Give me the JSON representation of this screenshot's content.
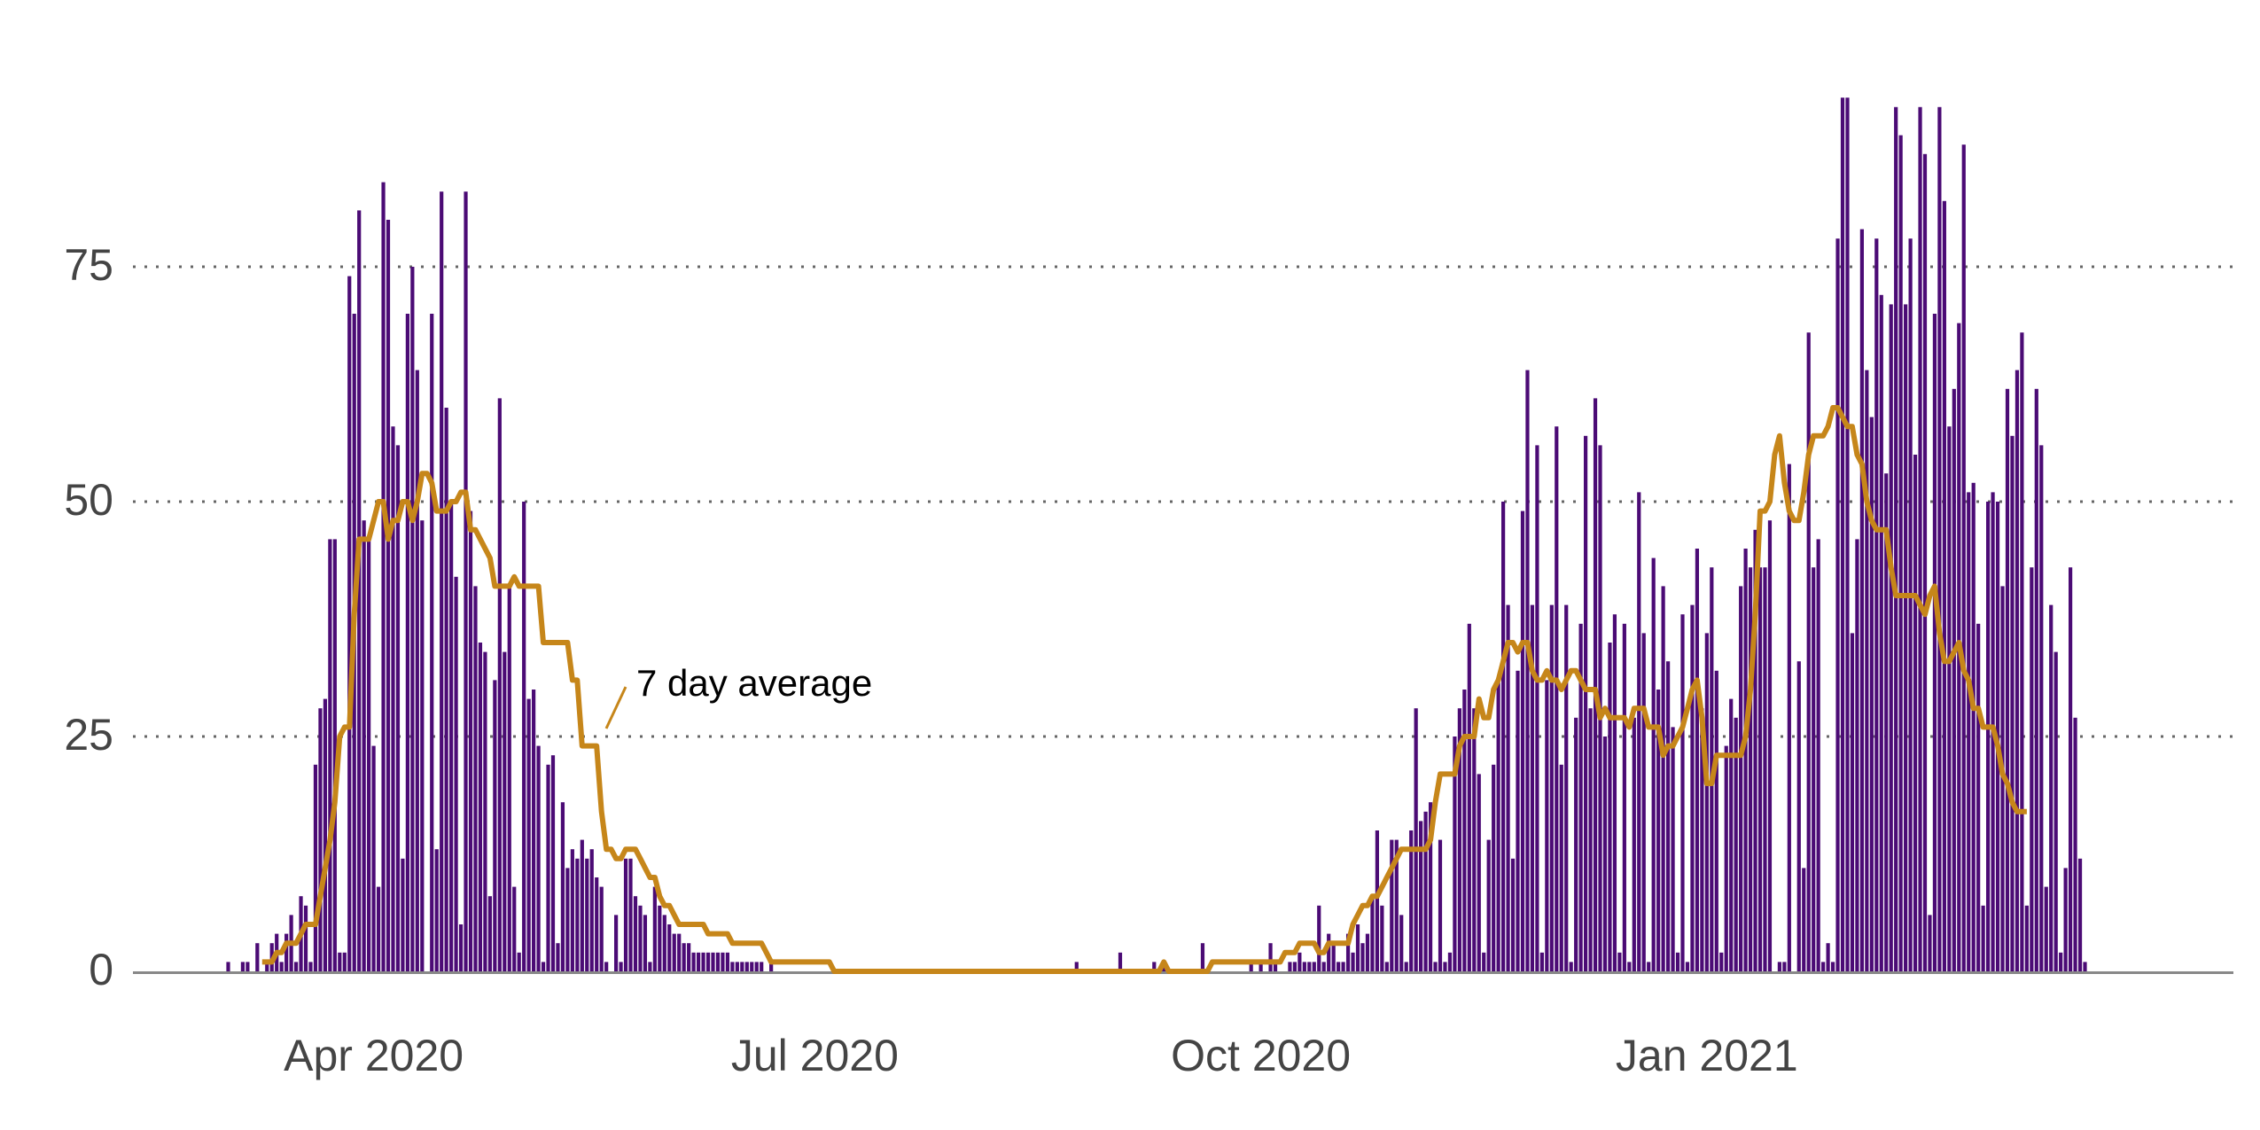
{
  "chart_data": {
    "type": "bar",
    "x_start": "2020-03-02",
    "x_tick_labels": [
      "Apr 2020",
      "Jul 2020",
      "Oct 2020",
      "Jan 2021"
    ],
    "x_tick_dates": [
      "2020-04-01",
      "2020-07-01",
      "2020-10-01",
      "2021-01-01"
    ],
    "y_tick_labels": [
      "0",
      "25",
      "50",
      "75"
    ],
    "y_ticks": [
      0,
      25,
      50,
      75
    ],
    "ylim": [
      0,
      93
    ],
    "grid": "horizontal dotted",
    "annotation": "7 day average",
    "colors": {
      "bars": "#4b0b75",
      "average": "#c6861a",
      "grid": "#666666",
      "axis": "#888888"
    },
    "series": [
      {
        "type": "bar",
        "values": [
          1,
          0,
          0,
          1,
          1,
          0,
          3,
          0,
          1,
          3,
          4,
          1,
          4,
          6,
          1,
          8,
          7,
          1,
          22,
          28,
          29,
          46,
          46,
          2,
          2,
          74,
          70,
          81,
          48,
          46,
          24,
          9,
          84,
          80,
          58,
          56,
          12,
          70,
          75,
          64,
          48,
          0,
          70,
          13,
          83,
          60,
          50,
          42,
          5,
          83,
          49,
          41,
          35,
          34,
          8,
          31,
          61,
          34,
          41,
          9,
          2,
          50,
          29,
          30,
          24,
          1,
          22,
          23,
          3,
          18,
          11,
          13,
          12,
          14,
          12,
          13,
          10,
          9,
          1,
          0,
          6,
          1,
          12,
          12,
          8,
          7,
          6,
          1,
          9,
          7,
          6,
          5,
          4,
          4,
          3,
          3,
          2,
          2,
          2,
          2,
          2,
          2,
          2,
          2,
          1,
          1,
          1,
          1,
          1,
          1,
          1,
          0,
          1,
          0,
          0,
          0,
          0,
          0,
          0,
          0,
          0,
          0,
          0,
          0,
          0,
          0,
          0,
          0,
          0,
          0,
          0,
          0,
          0,
          0,
          0,
          0,
          0,
          0,
          0,
          0,
          0,
          0,
          0,
          0,
          0,
          0,
          0,
          0,
          0,
          0,
          0,
          0,
          0,
          0,
          0,
          0,
          0,
          0,
          0,
          0,
          0,
          0,
          0,
          0,
          0,
          0,
          0,
          0,
          0,
          0,
          0,
          0,
          0,
          0,
          0,
          1,
          0,
          0,
          0,
          0,
          0,
          0,
          0,
          0,
          2,
          0,
          0,
          0,
          0,
          0,
          0,
          1,
          0,
          1,
          0,
          0,
          0,
          0,
          0,
          0,
          0,
          3,
          0,
          0,
          0,
          0,
          0,
          0,
          0,
          0,
          0,
          1,
          0,
          1,
          0,
          3,
          1,
          0,
          0,
          1,
          1,
          2,
          1,
          1,
          1,
          7,
          1,
          4,
          3,
          1,
          1,
          4,
          2,
          5,
          3,
          4,
          8,
          15,
          7,
          1,
          14,
          14,
          6,
          1,
          15,
          28,
          16,
          17,
          18,
          1,
          14,
          1,
          2,
          25,
          28,
          30,
          37,
          28,
          21,
          2,
          14,
          22,
          31,
          50,
          39,
          12,
          32,
          49,
          64,
          39,
          56,
          2,
          31,
          39,
          58,
          22,
          39,
          1,
          27,
          37,
          57,
          28,
          61,
          56,
          25,
          35,
          38,
          2,
          37,
          1,
          27,
          51,
          36,
          1,
          44,
          30,
          41,
          33,
          26,
          2,
          38,
          1,
          39,
          45,
          28,
          36,
          43,
          32,
          2,
          24,
          29,
          27,
          41,
          45,
          43,
          47,
          43,
          43,
          48,
          0,
          1,
          1,
          54,
          0,
          33,
          11,
          68,
          43,
          46,
          1,
          3,
          1,
          78,
          93,
          93,
          36,
          46,
          79,
          64,
          59,
          78,
          72,
          53,
          71,
          92,
          89,
          71,
          78,
          55,
          92,
          87,
          6,
          70,
          92,
          82,
          58,
          62,
          69,
          88,
          51,
          52,
          37,
          7,
          50,
          51,
          50,
          41,
          62,
          57,
          64,
          68,
          7,
          43,
          62,
          56,
          9,
          39,
          34,
          2,
          11,
          43,
          27,
          12,
          1
        ]
      },
      {
        "type": "line",
        "name": "7 day average",
        "values": [
          null,
          null,
          null,
          null,
          null,
          null,
          null,
          1,
          1,
          1,
          2,
          2,
          3,
          3,
          3,
          4,
          5,
          5,
          5,
          8,
          11,
          14,
          18,
          25,
          26,
          26,
          38,
          46,
          46,
          46,
          48,
          50,
          50,
          46,
          48,
          48,
          50,
          50,
          48,
          50,
          53,
          53,
          52,
          49,
          49,
          49,
          50,
          50,
          51,
          51,
          47,
          47,
          46,
          45,
          44,
          41,
          41,
          41,
          41,
          42,
          41,
          41,
          41,
          41,
          41,
          35,
          35,
          35,
          35,
          35,
          35,
          31,
          31,
          24,
          24,
          24,
          24,
          17,
          13,
          13,
          12,
          12,
          13,
          13,
          13,
          12,
          11,
          10,
          10,
          8,
          7,
          7,
          6,
          5,
          5,
          5,
          5,
          5,
          5,
          4,
          4,
          4,
          4,
          4,
          3,
          3,
          3,
          3,
          3,
          3,
          3,
          2,
          1,
          1,
          1,
          1,
          1,
          1,
          1,
          1,
          1,
          1,
          1,
          1,
          1,
          0,
          0,
          0,
          0,
          0,
          0,
          0,
          0,
          0,
          0,
          0,
          0,
          0,
          0,
          0,
          0,
          0,
          0,
          0,
          0,
          0,
          0,
          0,
          0,
          0,
          0,
          0,
          0,
          0,
          0,
          0,
          0,
          0,
          0,
          0,
          0,
          0,
          0,
          0,
          0,
          0,
          0,
          0,
          0,
          0,
          0,
          0,
          0,
          0,
          0,
          0,
          0,
          0,
          0,
          0,
          0,
          0,
          0,
          0,
          0,
          0,
          0,
          0,
          0,
          0,
          0,
          0,
          0,
          1,
          0,
          0,
          0,
          0,
          0,
          0,
          0,
          0,
          0,
          1,
          1,
          1,
          1,
          1,
          1,
          1,
          1,
          1,
          1,
          1,
          1,
          1,
          1,
          1,
          2,
          2,
          2,
          3,
          3,
          3,
          3,
          2,
          2,
          3,
          3,
          3,
          3,
          3,
          5,
          6,
          7,
          7,
          8,
          8,
          9,
          10,
          11,
          12,
          13,
          13,
          13,
          13,
          13,
          13,
          14,
          18,
          21,
          21,
          21,
          21,
          24,
          25,
          25,
          25,
          29,
          27,
          27,
          30,
          31,
          33,
          35,
          35,
          34,
          35,
          35,
          32,
          31,
          31,
          32,
          31,
          31,
          30,
          31,
          32,
          32,
          31,
          30,
          30,
          30,
          27,
          28,
          27,
          27,
          27,
          27,
          26,
          28,
          28,
          28,
          26,
          26,
          26,
          23,
          24,
          24,
          25,
          26,
          28,
          30,
          31,
          27,
          20,
          20,
          23,
          23,
          23,
          23,
          23,
          23,
          25,
          30,
          38,
          49,
          49,
          50,
          55,
          57,
          52,
          49,
          48,
          48,
          51,
          55,
          57,
          57,
          57,
          58,
          60,
          60,
          59,
          58,
          58,
          55,
          54,
          50,
          48,
          47,
          47,
          47,
          43,
          40,
          40,
          40,
          40,
          40,
          39,
          38,
          40,
          41,
          36,
          33,
          33,
          34,
          35,
          32,
          31,
          28,
          28,
          26,
          26,
          26,
          24,
          21,
          20,
          18,
          17,
          17,
          17
        ]
      }
    ]
  }
}
